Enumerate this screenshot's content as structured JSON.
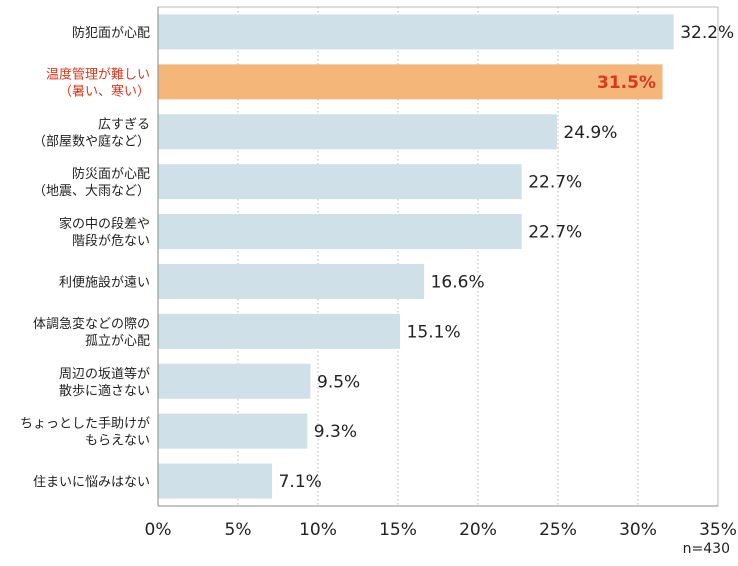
{
  "chart_data": {
    "type": "bar",
    "orientation": "horizontal",
    "categories": [
      [
        "防犯面が心配"
      ],
      [
        "温度管理が難しい",
        "（暑い、寒い）"
      ],
      [
        "広すぎる",
        "（部屋数や庭など）"
      ],
      [
        "防災面が心配",
        "（地震、大雨など）"
      ],
      [
        "家の中の段差や",
        "階段が危ない"
      ],
      [
        "利便施設が遠い"
      ],
      [
        "体調急変などの際の",
        "孤立が心配"
      ],
      [
        "周辺の坂道等が",
        "散歩に適さない"
      ],
      [
        "ちょっとした手助けが",
        "もらえない"
      ],
      [
        "住まいに悩みはない"
      ]
    ],
    "values": [
      32.2,
      31.5,
      24.9,
      22.7,
      22.7,
      16.6,
      15.1,
      9.5,
      9.3,
      7.1
    ],
    "value_labels": [
      "32.2%",
      "31.5%",
      "24.9%",
      "22.7%",
      "22.7%",
      "16.6%",
      "15.1%",
      "9.5%",
      "9.3%",
      "7.1%"
    ],
    "highlight_index": 1,
    "xlim": [
      0,
      35
    ],
    "xticks": [
      0,
      5,
      10,
      15,
      20,
      25,
      30,
      35
    ],
    "xtick_labels": [
      "0%",
      "5%",
      "10%",
      "15%",
      "20%",
      "25%",
      "30%",
      "35%"
    ],
    "grid": "vertical dotted",
    "colors": {
      "bar": "#d0e0e8",
      "highlight_bar": "#f4b679",
      "highlight_text": "#d9381e",
      "grid": "#b8b8b8",
      "axis": "#8a8a8a"
    }
  },
  "note": "n=430"
}
